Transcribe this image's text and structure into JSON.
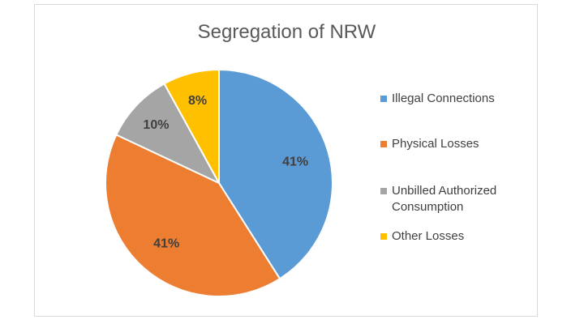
{
  "chart_data": {
    "type": "pie",
    "title": "Segregation of NRW",
    "categories": [
      "Illegal Connections",
      "Physical Losses",
      "Unbilled Authorized Consumption",
      "Other Losses"
    ],
    "values": [
      41,
      41,
      10,
      8
    ],
    "data_labels": [
      "41%",
      "41%",
      "10%",
      "8%"
    ],
    "colors": [
      "#5b9bd5",
      "#ed7d31",
      "#a5a5a5",
      "#ffc000"
    ],
    "legend_position": "right"
  }
}
